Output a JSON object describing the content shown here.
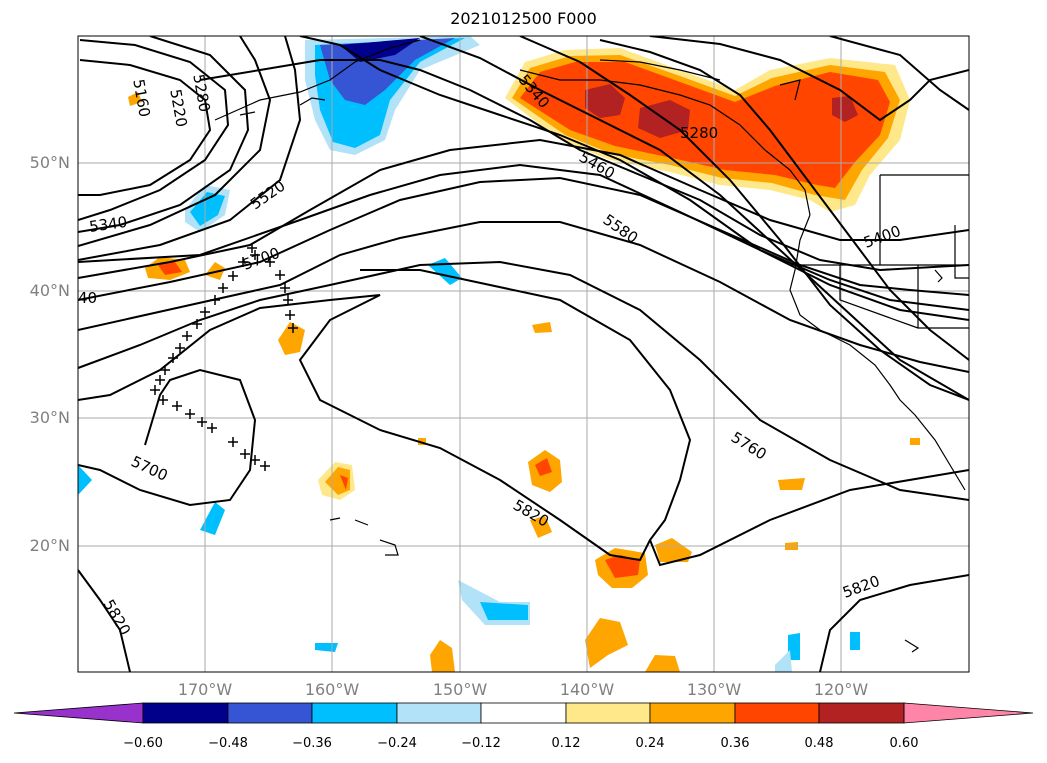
{
  "title": "2021012500 F000",
  "lat_labels": [
    "50°N",
    "40°N",
    "30°N",
    "20°N"
  ],
  "lon_labels": [
    "170°W",
    "160°W",
    "150°W",
    "140°W",
    "130°W",
    "120°W"
  ],
  "colorbar": {
    "tick_labels": [
      "−0.60",
      "−0.48",
      "−0.36",
      "−0.24",
      "−0.12",
      "0.12",
      "0.24",
      "0.36",
      "0.48",
      "0.60"
    ],
    "colors": [
      "#9932cc",
      "#00008b",
      "#3655d4",
      "#00bfff",
      "#b2e2f7",
      "#ffffff",
      "#ffe88a",
      "#ffa500",
      "#ff4500",
      "#b22222",
      "#ff85a8"
    ]
  },
  "contour_labels": [
    "5160",
    "5280",
    "5220",
    "5340",
    "5340",
    "5520",
    "5700",
    "5460",
    "5280",
    "5580",
    "5400",
    "5760",
    "5700",
    "5820",
    "5820",
    "5820",
    "40"
  ],
  "colors": {
    "contour": "#000000",
    "grid": "#aaaaaa",
    "coast": "#000000",
    "label_gray": "#808080"
  }
}
